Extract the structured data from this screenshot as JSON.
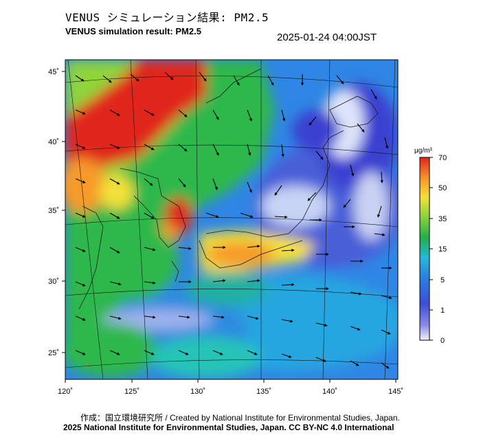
{
  "header": {
    "title_jp": "VENUS シミュレーション結果: PM2.5",
    "title_en": "VENUS simulation result: PM2.5",
    "timestamp": "2025-01-24 04:00JST"
  },
  "map": {
    "lat_labels": [
      "45˚",
      "40˚",
      "35˚",
      "30˚",
      "25˚"
    ],
    "lon_labels": [
      "120˚",
      "125˚",
      "130˚",
      "135˚",
      "140˚",
      "145˚"
    ],
    "extent": {
      "lon_min": 120,
      "lon_max": 145,
      "lat_min": 23,
      "lat_max": 46
    }
  },
  "colorbar": {
    "unit": "μg/m³",
    "tick_labels": [
      "70",
      "50",
      "35",
      "15",
      "5",
      "1",
      "0"
    ],
    "colors": [
      "#d7191c",
      "#f46d43",
      "#fdae61",
      "#f9d648",
      "#a6d96a",
      "#1a9641",
      "#21a7c9",
      "#2a6fd8",
      "#3a38c9",
      "#e8e8f4"
    ]
  },
  "footer": {
    "credit": "作成：国立環境研究所 / Created by National Institute for Environmental Studies, Japan.",
    "license": "2025 National Institute for Environmental Studies, Japan. CC BY-NC 4.0 International"
  }
}
